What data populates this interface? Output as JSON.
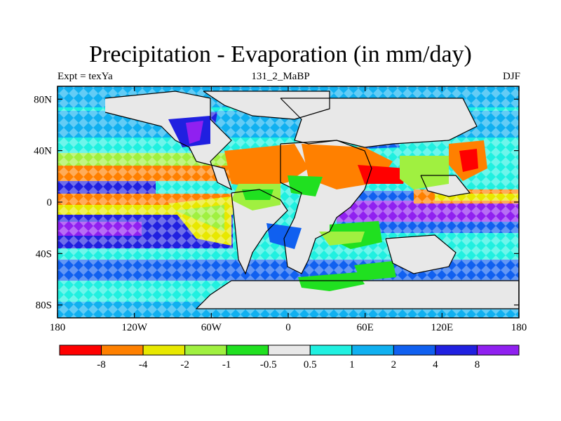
{
  "title": "Precipitation - Evaporation (in mm/day)",
  "subtitle_left": "Expt = texYa",
  "subtitle_center": "131_2_MaBP",
  "subtitle_right": "DJF",
  "map": {
    "projection": "cylindrical equidistant",
    "lon_range": [
      -180,
      180
    ],
    "lat_range": [
      -90,
      90
    ],
    "x_tick_labels": [
      "180",
      "120W",
      "60W",
      "0",
      "60E",
      "120E",
      "180"
    ],
    "y_tick_labels": [
      "80N",
      "40N",
      "0",
      "40S",
      "80S"
    ]
  },
  "colorbar": {
    "colors": [
      "#ff0000",
      "#ff8000",
      "#e8e800",
      "#a0f040",
      "#20e020",
      "#e8e8e8",
      "#20f0e0",
      "#10b0f0",
      "#1060f0",
      "#2020e0",
      "#9020f0"
    ],
    "labels": [
      "-8",
      "-4",
      "-2",
      "-1",
      "-0.5",
      "0.5",
      "1",
      "2",
      "4",
      "8"
    ]
  }
}
